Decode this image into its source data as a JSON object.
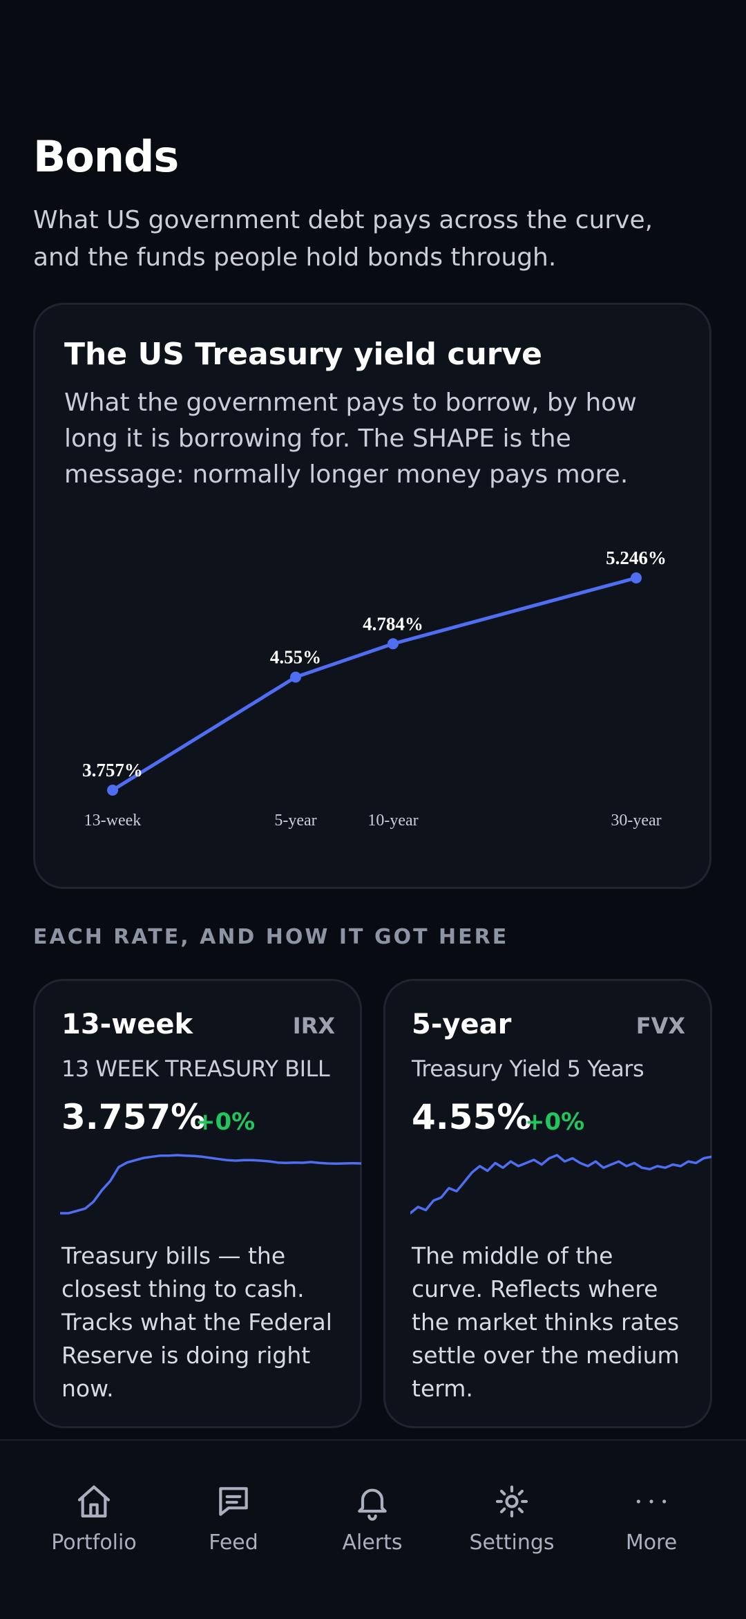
{
  "header": {
    "title": "Bonds",
    "subtitle": "What US government debt pays across the curve, and the funds people hold bonds through."
  },
  "curve_card": {
    "title": "The US Treasury yield curve",
    "description": "What the government pays to borrow, by how long it is borrowing for. The SHAPE is the message: normally longer money pays more."
  },
  "chart_data": {
    "type": "line",
    "x": [
      0.25,
      5,
      10,
      30
    ],
    "categories": [
      "13-week",
      "5-year",
      "10-year",
      "30-year"
    ],
    "values": [
      3.757,
      4.55,
      4.784,
      5.246
    ],
    "data_labels": [
      "3.757%",
      "4.55%",
      "4.784%",
      "5.246%"
    ],
    "xlabel": "",
    "ylabel": "",
    "grid": false,
    "color": "#4f6ef2"
  },
  "section": {
    "label": "EACH RATE, AND HOW IT GOT HERE"
  },
  "rates": [
    {
      "title": "13-week",
      "ticker": "IRX",
      "name": "13 WEEK TREASURY BILL",
      "value": "3.757%",
      "change": "+0%",
      "description": "Treasury bills — the closest thing to cash. Tracks what the Federal Reserve is doing right now.",
      "sparkline": [
        3.5,
        3.5,
        3.51,
        3.52,
        3.55,
        3.6,
        3.64,
        3.7,
        3.72,
        3.73,
        3.74,
        3.745,
        3.75,
        3.75,
        3.752,
        3.75,
        3.748,
        3.745,
        3.74,
        3.735,
        3.73,
        3.728,
        3.73,
        3.73,
        3.728,
        3.725,
        3.72,
        3.718,
        3.72,
        3.719,
        3.722,
        3.718,
        3.716,
        3.715,
        3.716,
        3.717,
        3.716
      ]
    },
    {
      "title": "5-year",
      "ticker": "FVX",
      "name": "Treasury Yield 5 Years",
      "value": "4.55%",
      "change": "+0%",
      "description": "The middle of the curve. Reflects where the market thinks rates settle over the medium term.",
      "sparkline": [
        4.2,
        4.24,
        4.22,
        4.28,
        4.3,
        4.36,
        4.34,
        4.4,
        4.46,
        4.5,
        4.47,
        4.52,
        4.49,
        4.53,
        4.5,
        4.52,
        4.54,
        4.51,
        4.55,
        4.57,
        4.53,
        4.55,
        4.52,
        4.5,
        4.53,
        4.49,
        4.51,
        4.53,
        4.5,
        4.52,
        4.49,
        4.48,
        4.5,
        4.49,
        4.51,
        4.5,
        4.53,
        4.52,
        4.55,
        4.56
      ]
    }
  ],
  "nav": [
    {
      "label": "Portfolio",
      "icon": "home-icon"
    },
    {
      "label": "Feed",
      "icon": "feed-icon"
    },
    {
      "label": "Alerts",
      "icon": "bell-icon"
    },
    {
      "label": "Settings",
      "icon": "gear-icon"
    },
    {
      "label": "More",
      "icon": "more-icon"
    }
  ]
}
